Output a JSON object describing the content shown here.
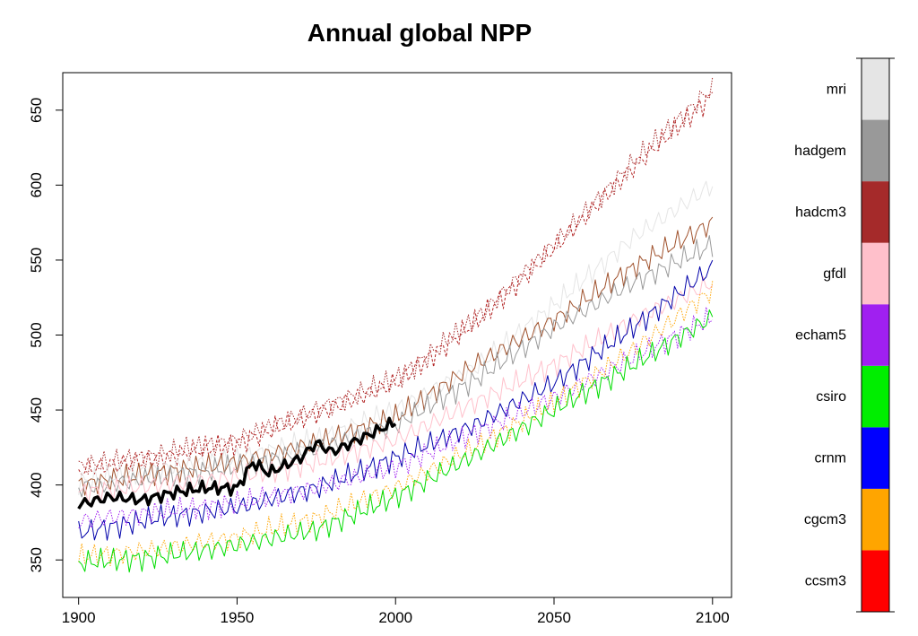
{
  "chart_data": {
    "type": "line",
    "title": "Annual global NPP",
    "xlabel": "",
    "ylabel": "",
    "xlim": [
      1895,
      2106
    ],
    "ylim": [
      325,
      675
    ],
    "x_ticks": [
      "1900",
      "1950",
      "2000",
      "2050",
      "2100"
    ],
    "x_tick_values": [
      1900,
      1950,
      2000,
      2050,
      2100
    ],
    "y_ticks": [
      "350",
      "400",
      "450",
      "500",
      "550",
      "600",
      "650"
    ],
    "y_tick_values": [
      350,
      400,
      450,
      500,
      550,
      600,
      650
    ],
    "grid": false,
    "legend_placement": "right colorbar",
    "legend": [
      {
        "name": "ccsm3",
        "color": "#ff0000"
      },
      {
        "name": "cgcm3",
        "color": "#ffa500"
      },
      {
        "name": "crnm",
        "color": "#0000ff"
      },
      {
        "name": "csiro",
        "color": "#00ee00"
      },
      {
        "name": "echam5",
        "color": "#a020f0"
      },
      {
        "name": "gfdl",
        "color": "#ffc0cb"
      },
      {
        "name": "hadcm3",
        "color": "#a52a2a"
      },
      {
        "name": "hadgem",
        "color": "#999999"
      },
      {
        "name": "mri",
        "color": "#e5e5e5"
      }
    ],
    "series": [
      {
        "color": "#a52a2a",
        "style": "dotted",
        "x": [
          1900,
          1925,
          1950,
          1975,
          2000,
          2025,
          2050,
          2075,
          2100
        ],
        "y": [
          412,
          420,
          430,
          450,
          470,
          510,
          560,
          615,
          665
        ]
      },
      {
        "color": "#b22222",
        "style": "dashed",
        "x": [
          1900,
          1925,
          1950,
          1975,
          2000,
          2025,
          2050,
          2075,
          2100
        ],
        "y": [
          410,
          418,
          428,
          448,
          468,
          508,
          558,
          612,
          660
        ]
      },
      {
        "color": "#e5e5e5",
        "style": "solid",
        "x": [
          1900,
          1925,
          1950,
          1975,
          2000,
          2025,
          2050,
          2075,
          2100
        ],
        "y": [
          402,
          410,
          418,
          430,
          450,
          478,
          520,
          565,
          600
        ]
      },
      {
        "color": "#a0522d",
        "style": "solid",
        "x": [
          1900,
          1925,
          1950,
          1975,
          2000,
          2025,
          2050,
          2075,
          2100
        ],
        "y": [
          400,
          408,
          415,
          428,
          445,
          480,
          510,
          545,
          575
        ]
      },
      {
        "color": "#999999",
        "style": "solid",
        "x": [
          1900,
          1925,
          1950,
          1975,
          2000,
          2025,
          2050,
          2075,
          2100
        ],
        "y": [
          398,
          405,
          412,
          424,
          440,
          470,
          505,
          535,
          560
        ]
      },
      {
        "color": "#ffc0cb",
        "style": "solid",
        "x": [
          1900,
          1925,
          1950,
          1975,
          2000,
          2025,
          2050,
          2075,
          2100
        ],
        "y": [
          395,
          400,
          405,
          415,
          430,
          455,
          480,
          510,
          535
        ]
      },
      {
        "color": "#0000aa",
        "style": "solid",
        "x": [
          1900,
          1925,
          1950,
          1975,
          2000,
          2025,
          2050,
          2075,
          2100
        ],
        "y": [
          368,
          378,
          385,
          398,
          418,
          440,
          468,
          505,
          545
        ]
      },
      {
        "color": "#a020f0",
        "style": "dotted",
        "x": [
          1900,
          1925,
          1950,
          1975,
          2000,
          2025,
          2050,
          2075,
          2100
        ],
        "y": [
          376,
          382,
          388,
          398,
          412,
          435,
          458,
          485,
          512
        ]
      },
      {
        "color": "#ffa500",
        "style": "dotted",
        "x": [
          1900,
          1925,
          1950,
          1975,
          2000,
          2025,
          2050,
          2075,
          2100
        ],
        "y": [
          352,
          357,
          365,
          378,
          398,
          425,
          455,
          490,
          530
        ]
      },
      {
        "color": "#00dd00",
        "style": "solid",
        "x": [
          1900,
          1925,
          1950,
          1975,
          2000,
          2025,
          2050,
          2075,
          2100
        ],
        "y": [
          348,
          352,
          360,
          370,
          392,
          420,
          450,
          480,
          512
        ]
      },
      {
        "color": "#000000",
        "style": "thick",
        "x": [
          1900,
          1910,
          1920,
          1930,
          1940,
          1950,
          1955,
          1960,
          1970,
          1975,
          1980,
          1990,
          2000
        ],
        "y": [
          387,
          392,
          390,
          395,
          398,
          398,
          415,
          408,
          418,
          428,
          422,
          432,
          442
        ]
      }
    ]
  }
}
